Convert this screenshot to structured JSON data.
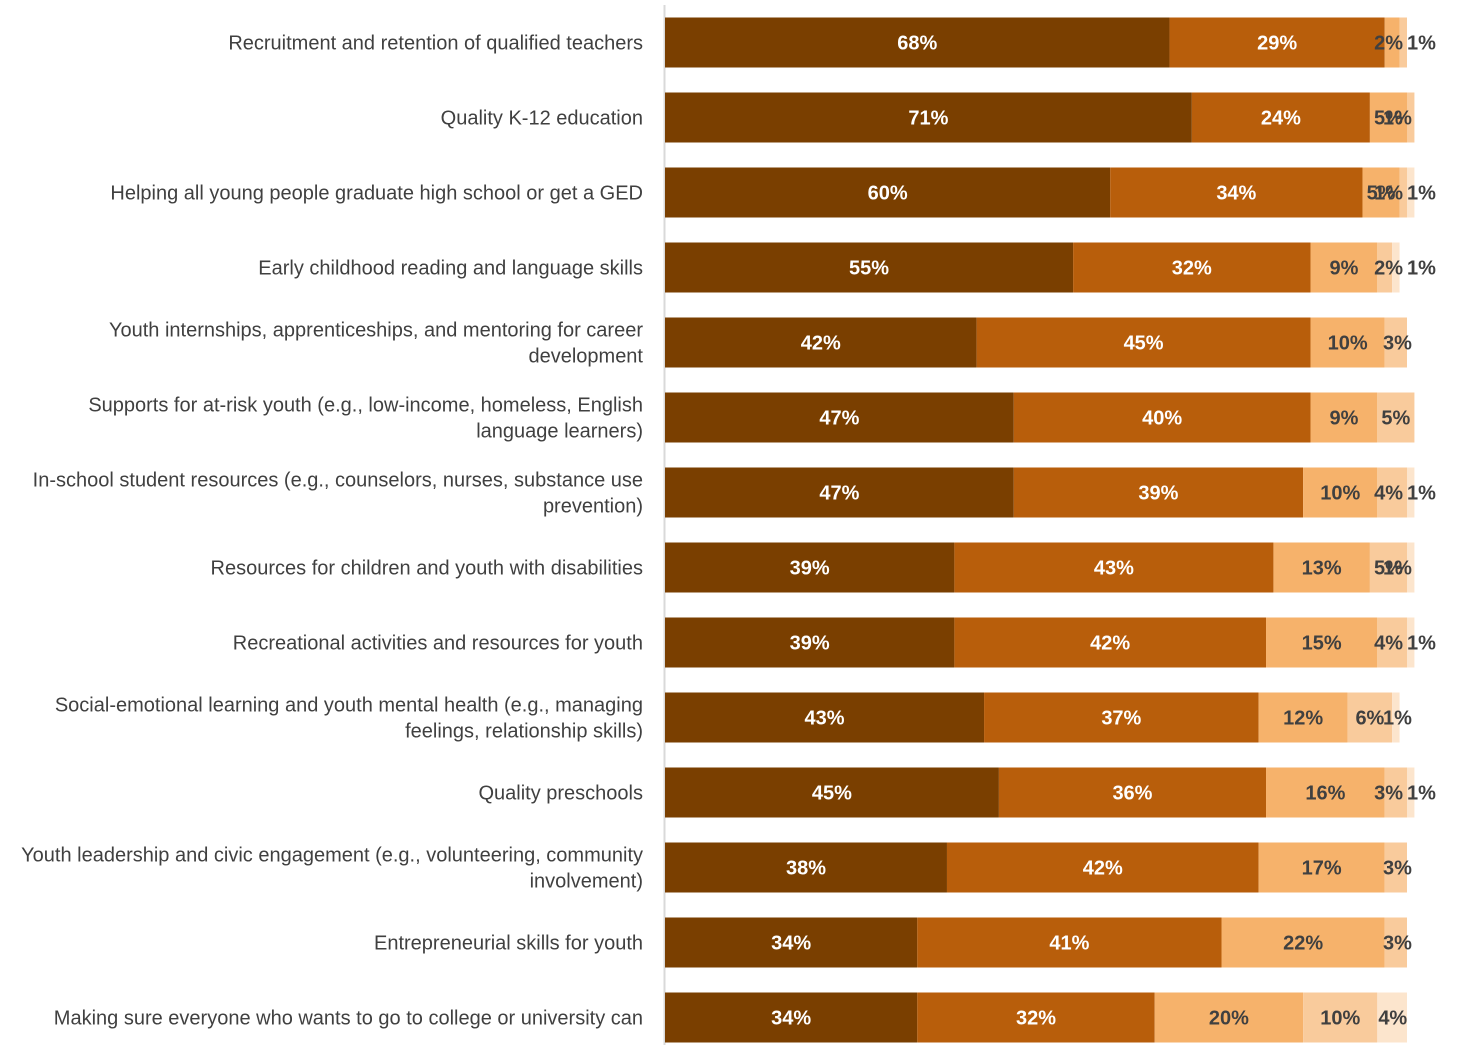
{
  "chart_data": {
    "type": "bar",
    "orientation": "horizontal",
    "stacked": true,
    "xlim": [
      0,
      100
    ],
    "grid": false,
    "legend": "none",
    "value_suffix": "%",
    "categories": [
      "Recruitment and retention of qualified teachers",
      "Quality K-12 education",
      "Helping all young people graduate high school or get a GED",
      "Early childhood reading and language skills",
      "Youth internships, apprenticeships, and mentoring for career development",
      "Supports for at-risk youth (e.g., low-income, homeless, English language learners)",
      "In-school student resources (e.g., counselors, nurses, substance use prevention)",
      "Resources for children and youth with disabilities",
      "Recreational activities and resources for youth",
      "Social-emotional learning and youth mental health (e.g., managing feelings, relationship skills)",
      "Quality preschools",
      "Youth leadership and civic engagement (e.g., volunteering, community involvement)",
      "Entrepreneurial skills for youth",
      "Making sure everyone who wants to go to college or university can"
    ],
    "series": [
      {
        "color": "#7a3f00",
        "label_color": "#ffffff",
        "values": [
          68,
          71,
          60,
          55,
          42,
          47,
          47,
          39,
          39,
          43,
          45,
          38,
          34,
          34
        ]
      },
      {
        "color": "#b85e0b",
        "label_color": "#ffffff",
        "values": [
          29,
          24,
          34,
          32,
          45,
          40,
          39,
          43,
          42,
          37,
          36,
          42,
          41,
          32
        ]
      },
      {
        "color": "#f6b26b",
        "label_color": "#404040",
        "values": [
          2,
          5,
          5,
          9,
          10,
          9,
          10,
          13,
          15,
          12,
          16,
          17,
          22,
          20
        ]
      },
      {
        "color": "#f9cb9c",
        "label_color": "#404040",
        "values": [
          1,
          1,
          1,
          2,
          3,
          5,
          4,
          5,
          4,
          6,
          3,
          3,
          3,
          10
        ]
      },
      {
        "color": "#fce5cd",
        "label_color": "#404040",
        "values": [
          0,
          0,
          1,
          1,
          0,
          0,
          1,
          1,
          1,
          1,
          1,
          0,
          0,
          4
        ]
      }
    ]
  }
}
